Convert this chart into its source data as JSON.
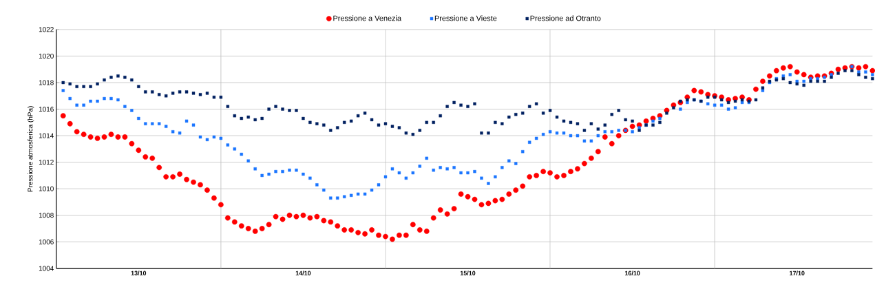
{
  "chart_data": {
    "type": "scatter",
    "ylabel": "Pressione atmosferica (hPa)",
    "categories": [
      null,
      null,
      null,
      null,
      null,
      null,
      null,
      null,
      null,
      null,
      null,
      "13/10",
      null,
      null,
      null,
      null,
      null,
      null,
      null,
      null,
      null,
      null,
      null,
      null,
      null,
      null,
      null,
      null,
      null,
      null,
      null,
      null,
      null,
      null,
      null,
      "14/10",
      null,
      null,
      null,
      null,
      null,
      null,
      null,
      null,
      null,
      null,
      null,
      null,
      null,
      null,
      null,
      null,
      null,
      null,
      null,
      null,
      null,
      null,
      null,
      "15/10",
      null,
      null,
      null,
      null,
      null,
      null,
      null,
      null,
      null,
      null,
      null,
      null,
      null,
      null,
      null,
      null,
      null,
      null,
      null,
      null,
      null,
      null,
      null,
      "16/10",
      null,
      null,
      null,
      null,
      null,
      null,
      null,
      null,
      null,
      null,
      null,
      null,
      null,
      null,
      null,
      null,
      null,
      null,
      null,
      null,
      null,
      null,
      null,
      "17/10",
      null,
      null,
      null,
      null,
      null,
      null,
      null,
      null,
      null,
      null,
      null
    ],
    "series": [
      {
        "name": "Pressione a Venezia",
        "color": "#ff0000",
        "marker": "circle",
        "values": [
          1015.5,
          1014.9,
          1014.3,
          1014.1,
          1013.9,
          1013.8,
          1013.9,
          1014.1,
          1013.9,
          1013.9,
          1013.4,
          1012.9,
          1012.4,
          1012.3,
          1011.6,
          1010.9,
          1010.9,
          1011.1,
          1010.7,
          1010.5,
          1010.3,
          1009.9,
          1009.3,
          1008.8,
          1007.8,
          1007.5,
          1007.2,
          1007.0,
          1006.8,
          1007.0,
          1007.3,
          1007.9,
          1007.7,
          1008.0,
          1007.9,
          1008.0,
          1007.8,
          1007.9,
          1007.6,
          1007.5,
          1007.2,
          1006.9,
          1006.9,
          1006.7,
          1006.6,
          1006.9,
          1006.5,
          1006.4,
          1006.2,
          1006.5,
          1006.5,
          1007.3,
          1006.9,
          1006.8,
          1007.8,
          1008.4,
          1008.1,
          1008.5,
          1009.6,
          1009.4,
          1009.2,
          1008.8,
          1008.9,
          1009.1,
          1009.2,
          1009.6,
          1009.9,
          1010.2,
          1010.9,
          1011.0,
          1011.3,
          1011.2,
          1010.9,
          1011.0,
          1011.3,
          1011.5,
          1011.9,
          1012.3,
          1012.8,
          1013.9,
          1013.4,
          1014.0,
          1014.4,
          1014.7,
          1014.8,
          1015.1,
          1015.3,
          1015.5,
          1015.9,
          1016.3,
          1016.5,
          1016.9,
          1017.4,
          1017.3,
          1017.1,
          1017.0,
          1016.9,
          1016.7,
          1016.8,
          1016.9,
          1016.7,
          1017.5,
          1018.1,
          1018.5,
          1018.9,
          1019.1,
          1019.2,
          1018.8,
          1018.6,
          1018.4,
          1018.5,
          1018.5,
          1018.7,
          1019.0,
          1019.1,
          1019.2,
          1019.1,
          1019.2,
          1018.9
        ]
      },
      {
        "name": "Pressione a Vieste",
        "color": "#1a75ff",
        "marker": "square",
        "values": [
          1017.4,
          1016.8,
          1016.3,
          1016.3,
          1016.6,
          1016.6,
          1016.8,
          1016.8,
          1016.7,
          1016.2,
          1015.9,
          1015.3,
          1014.9,
          1014.9,
          1014.9,
          1014.7,
          1014.3,
          1014.2,
          1015.1,
          1014.8,
          1013.9,
          1013.7,
          1013.9,
          1013.8,
          1013.3,
          1013.0,
          1012.6,
          1012.1,
          1011.5,
          1011.0,
          1011.1,
          1011.3,
          1011.3,
          1011.4,
          1011.4,
          1011.1,
          1010.8,
          1010.3,
          1009.9,
          1009.3,
          1009.3,
          1009.4,
          1009.5,
          1009.6,
          1009.6,
          1009.9,
          1010.3,
          1010.9,
          1011.5,
          1011.2,
          1010.8,
          1011.2,
          1011.7,
          1012.3,
          1011.4,
          1011.6,
          1011.5,
          1011.6,
          1011.2,
          1011.2,
          1011.3,
          1010.8,
          1010.4,
          1010.9,
          1011.6,
          1012.1,
          1011.9,
          1012.8,
          1013.5,
          1013.8,
          1014.1,
          1014.3,
          1014.2,
          1014.2,
          1014.0,
          1014.0,
          1013.6,
          1013.6,
          1014.0,
          1014.3,
          1014.3,
          1014.4,
          1014.4,
          1014.3,
          1014.6,
          1014.8,
          1015.1,
          1015.3,
          null,
          null,
          1016.0,
          1016.5,
          1016.7,
          1016.6,
          1016.4,
          1016.3,
          1016.3,
          1016.0,
          1016.1,
          1016.5,
          1016.5,
          null,
          1017.4,
          1018.0,
          1018.3,
          1018.5,
          1018.6,
          1018.1,
          1018.1,
          1018.3,
          1018.3,
          1018.4,
          1018.6,
          null,
          null,
          1019.2,
          1018.8,
          1018.8,
          1018.6
        ]
      },
      {
        "name": "Pressione ad Otranto",
        "color": "#002060",
        "marker": "square",
        "values": [
          1018.0,
          1017.9,
          1017.7,
          1017.7,
          1017.7,
          1017.9,
          1018.2,
          1018.4,
          1018.5,
          1018.4,
          1018.2,
          1017.7,
          1017.3,
          1017.3,
          1017.1,
          1017.0,
          1017.2,
          1017.3,
          1017.3,
          1017.2,
          1017.1,
          1017.2,
          1016.9,
          1016.9,
          1016.2,
          1015.5,
          1015.3,
          1015.4,
          1015.2,
          1015.3,
          1016.0,
          1016.2,
          1016.0,
          1015.9,
          1015.9,
          1015.3,
          1015.0,
          1014.9,
          1014.8,
          1014.4,
          1014.6,
          1015.0,
          1015.1,
          1015.5,
          1015.7,
          1015.2,
          1014.8,
          1014.9,
          1014.7,
          1014.6,
          1014.2,
          1014.1,
          1014.4,
          1015.0,
          1015.0,
          1015.5,
          1016.2,
          1016.5,
          1016.3,
          1016.2,
          1016.4,
          1014.2,
          1014.2,
          1015.0,
          1014.9,
          1015.4,
          1015.6,
          1015.7,
          1016.2,
          1016.4,
          1015.7,
          1015.9,
          1015.4,
          1015.1,
          1015.0,
          1014.9,
          1014.4,
          1014.9,
          1014.5,
          1014.8,
          1015.6,
          1015.9,
          1015.2,
          1015.1,
          1014.4,
          1014.8,
          1014.8,
          1015.0,
          1015.7,
          1016.1,
          1016.6,
          1016.7,
          1016.7,
          1016.6,
          1016.9,
          1016.9,
          1016.7,
          1016.5,
          1016.6,
          1016.7,
          1016.6,
          1016.7,
          1017.6,
          1018.1,
          1018.2,
          1018.3,
          1018.0,
          1017.9,
          1017.8,
          1018.1,
          1018.1,
          1018.1,
          1018.4,
          1018.7,
          1018.9,
          1018.9,
          1018.6,
          1018.4,
          1018.3
        ]
      }
    ],
    "ylim": [
      1004,
      1022
    ],
    "yticks": [
      1004,
      1006,
      1008,
      1010,
      1012,
      1014,
      1016,
      1018,
      1020,
      1022
    ],
    "grid": true,
    "legend": "top"
  }
}
